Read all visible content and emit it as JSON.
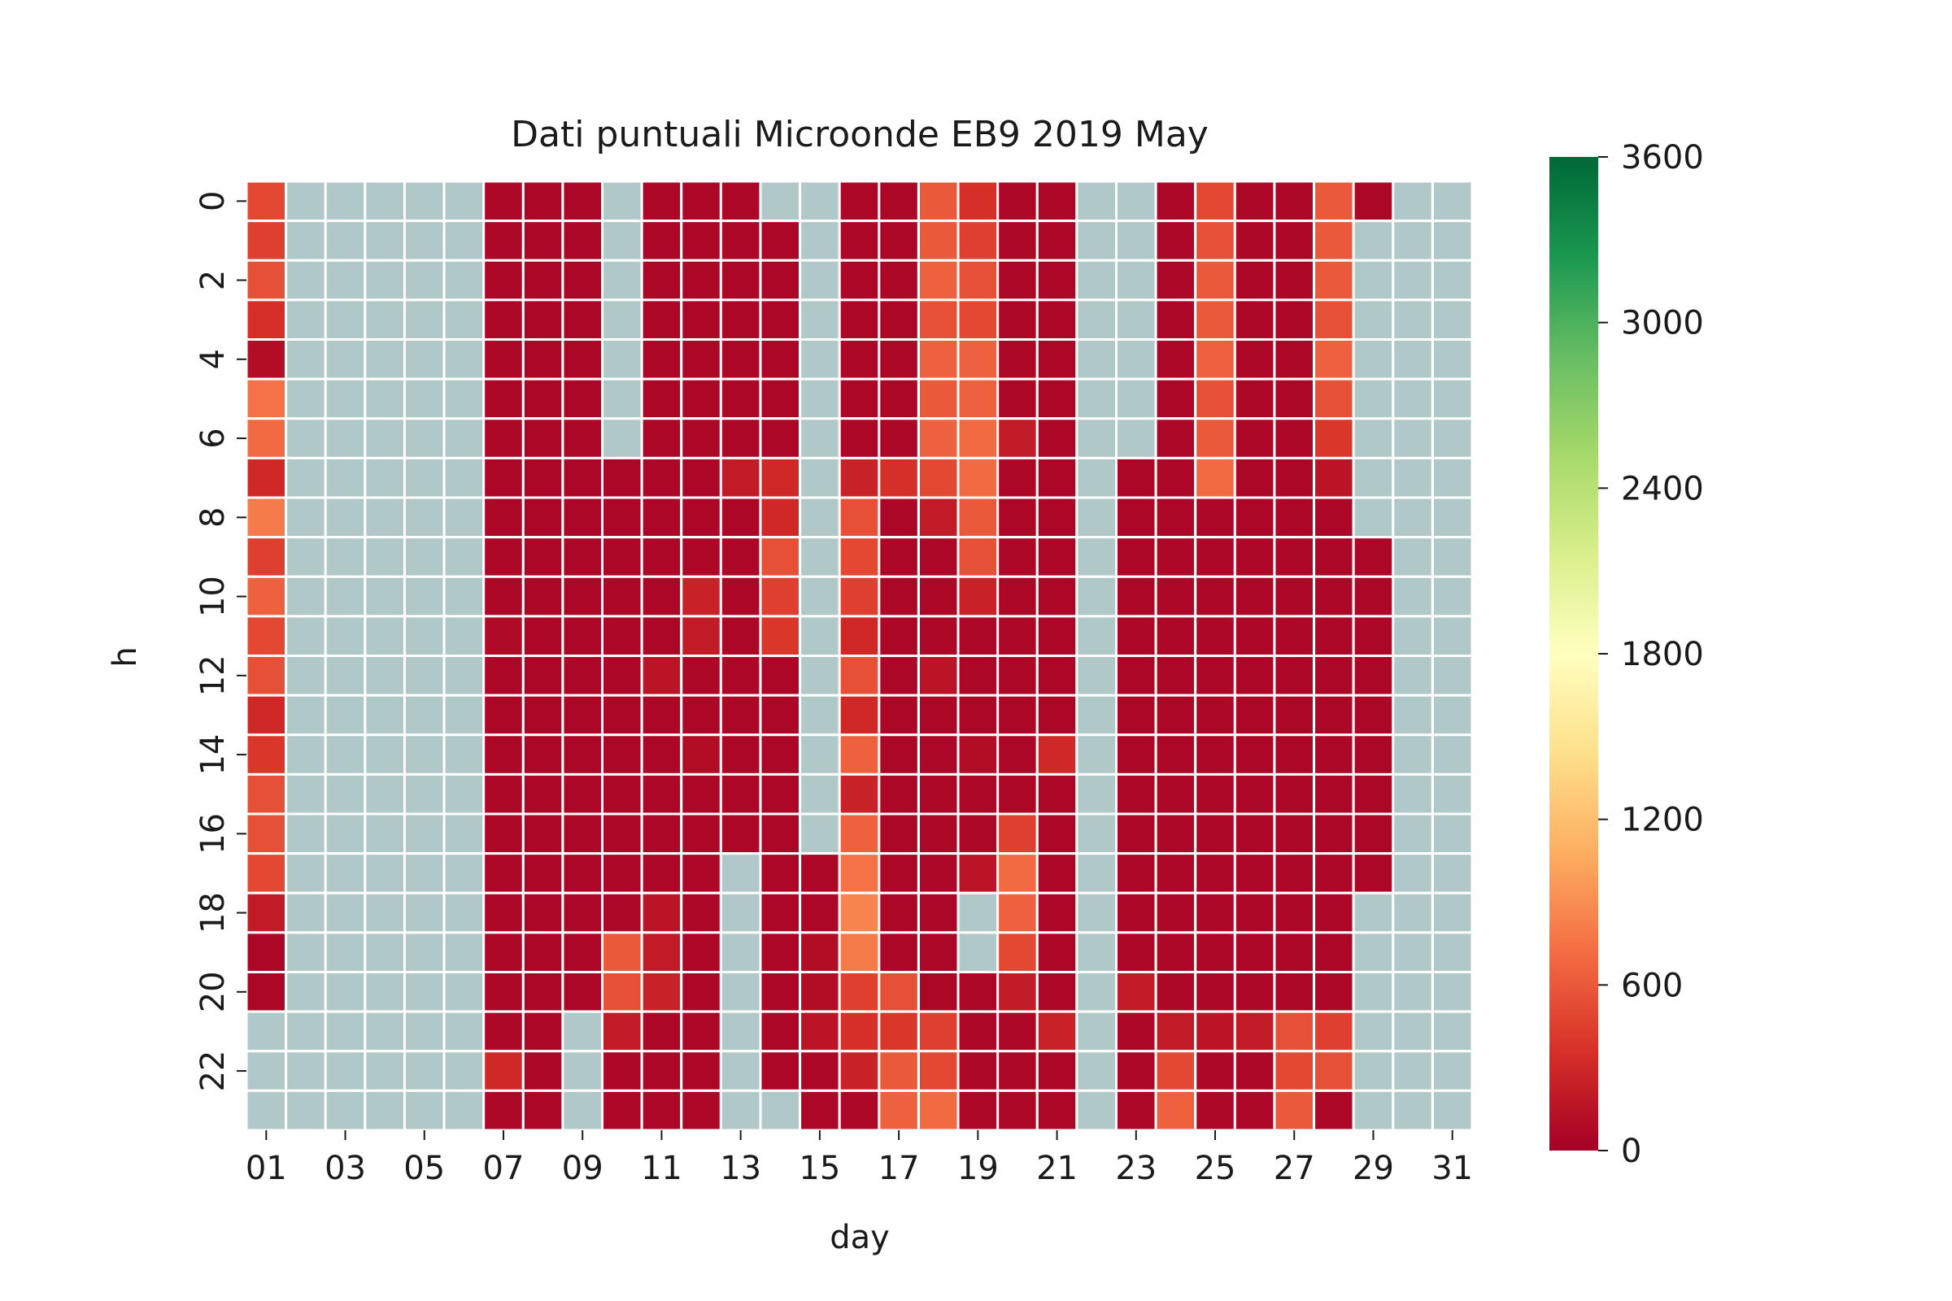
{
  "chart_data": {
    "type": "heatmap",
    "title": "Dati puntuali Microonde EB9 2019 May",
    "xlabel": "day",
    "ylabel": "h",
    "x_categories": [
      "01",
      "02",
      "03",
      "04",
      "05",
      "06",
      "07",
      "08",
      "09",
      "10",
      "11",
      "12",
      "13",
      "14",
      "15",
      "16",
      "17",
      "18",
      "19",
      "20",
      "21",
      "22",
      "23",
      "24",
      "25",
      "26",
      "27",
      "28",
      "29",
      "30",
      "31"
    ],
    "x_tick_labels": [
      "01",
      "03",
      "05",
      "07",
      "09",
      "11",
      "13",
      "15",
      "17",
      "19",
      "21",
      "23",
      "25",
      "27",
      "29",
      "31"
    ],
    "y_categories": [
      "0",
      "1",
      "2",
      "3",
      "4",
      "5",
      "6",
      "7",
      "8",
      "9",
      "10",
      "11",
      "12",
      "13",
      "14",
      "15",
      "16",
      "17",
      "18",
      "19",
      "20",
      "21",
      "22",
      "23"
    ],
    "y_tick_labels": [
      "0",
      "2",
      "4",
      "6",
      "8",
      "10",
      "12",
      "14",
      "16",
      "18",
      "20",
      "22"
    ],
    "colorbar": {
      "min": 0,
      "max": 3600,
      "ticks": [
        "0",
        "600",
        "1200",
        "1800",
        "2400",
        "3000",
        "3600"
      ],
      "colormap": "RdYlGn",
      "missing_color": "#b1c8c8"
    },
    "values": [
      [
        500,
        null,
        null,
        null,
        null,
        null,
        50,
        50,
        50,
        null,
        50,
        50,
        50,
        null,
        null,
        50,
        50,
        600,
        350,
        50,
        50,
        null,
        null,
        50,
        500,
        50,
        50,
        600,
        50,
        null,
        null
      ],
      [
        450,
        null,
        null,
        null,
        null,
        null,
        50,
        50,
        50,
        null,
        50,
        50,
        50,
        50,
        null,
        50,
        50,
        600,
        450,
        50,
        50,
        null,
        null,
        50,
        550,
        50,
        50,
        600,
        null,
        null,
        null
      ],
      [
        550,
        null,
        null,
        null,
        null,
        null,
        50,
        50,
        50,
        null,
        50,
        50,
        50,
        50,
        null,
        50,
        50,
        650,
        550,
        50,
        50,
        null,
        null,
        50,
        600,
        50,
        50,
        600,
        null,
        null,
        null
      ],
      [
        350,
        null,
        null,
        null,
        null,
        null,
        50,
        50,
        50,
        null,
        50,
        50,
        50,
        50,
        null,
        50,
        50,
        550,
        500,
        50,
        50,
        null,
        null,
        50,
        600,
        50,
        50,
        550,
        null,
        null,
        null
      ],
      [
        100,
        null,
        null,
        null,
        null,
        null,
        50,
        50,
        50,
        null,
        50,
        50,
        50,
        50,
        null,
        50,
        50,
        650,
        650,
        50,
        50,
        null,
        null,
        50,
        650,
        50,
        50,
        650,
        null,
        null,
        null
      ],
      [
        750,
        null,
        null,
        null,
        null,
        null,
        50,
        50,
        50,
        null,
        50,
        50,
        50,
        50,
        null,
        50,
        50,
        600,
        650,
        50,
        50,
        null,
        null,
        50,
        550,
        50,
        50,
        550,
        null,
        null,
        null
      ],
      [
        700,
        null,
        null,
        null,
        null,
        null,
        50,
        50,
        50,
        null,
        50,
        50,
        50,
        50,
        null,
        50,
        50,
        650,
        700,
        200,
        50,
        null,
        null,
        50,
        600,
        50,
        50,
        400,
        null,
        null,
        null
      ],
      [
        300,
        null,
        null,
        null,
        null,
        null,
        50,
        50,
        50,
        50,
        50,
        50,
        200,
        300,
        null,
        250,
        350,
        500,
        700,
        50,
        50,
        null,
        50,
        50,
        700,
        50,
        50,
        150,
        null,
        null,
        null
      ],
      [
        800,
        null,
        null,
        null,
        null,
        null,
        50,
        50,
        50,
        50,
        50,
        50,
        50,
        300,
        null,
        550,
        50,
        200,
        600,
        50,
        50,
        null,
        50,
        50,
        50,
        50,
        50,
        50,
        null,
        null,
        null
      ],
      [
        450,
        null,
        null,
        null,
        null,
        null,
        50,
        50,
        50,
        50,
        50,
        50,
        50,
        550,
        null,
        500,
        50,
        50,
        550,
        50,
        50,
        null,
        50,
        50,
        50,
        50,
        50,
        50,
        50,
        null,
        null
      ],
      [
        650,
        null,
        null,
        null,
        null,
        null,
        50,
        50,
        50,
        50,
        50,
        250,
        50,
        450,
        null,
        450,
        50,
        50,
        250,
        50,
        50,
        null,
        50,
        50,
        50,
        50,
        50,
        50,
        50,
        null,
        null
      ],
      [
        500,
        null,
        null,
        null,
        null,
        null,
        80,
        50,
        50,
        50,
        50,
        200,
        50,
        400,
        null,
        300,
        50,
        50,
        50,
        50,
        50,
        null,
        50,
        50,
        50,
        50,
        50,
        50,
        50,
        null,
        null
      ],
      [
        550,
        null,
        null,
        null,
        null,
        null,
        50,
        50,
        50,
        50,
        150,
        50,
        50,
        50,
        null,
        550,
        50,
        150,
        50,
        50,
        50,
        null,
        50,
        50,
        50,
        50,
        50,
        50,
        50,
        null,
        null
      ],
      [
        300,
        null,
        null,
        null,
        null,
        null,
        50,
        50,
        50,
        50,
        50,
        50,
        50,
        50,
        null,
        300,
        50,
        50,
        50,
        50,
        50,
        null,
        50,
        50,
        50,
        50,
        50,
        50,
        50,
        null,
        null
      ],
      [
        400,
        null,
        null,
        null,
        null,
        null,
        50,
        50,
        50,
        50,
        50,
        100,
        50,
        50,
        null,
        650,
        50,
        50,
        100,
        50,
        300,
        null,
        50,
        50,
        50,
        50,
        50,
        50,
        50,
        null,
        null
      ],
      [
        550,
        null,
        null,
        null,
        null,
        null,
        50,
        50,
        50,
        50,
        50,
        50,
        50,
        50,
        null,
        250,
        50,
        50,
        50,
        50,
        50,
        null,
        50,
        50,
        50,
        50,
        50,
        50,
        50,
        null,
        null
      ],
      [
        550,
        null,
        null,
        null,
        null,
        null,
        50,
        50,
        50,
        50,
        50,
        50,
        50,
        50,
        null,
        650,
        50,
        50,
        50,
        450,
        50,
        null,
        50,
        50,
        50,
        50,
        50,
        50,
        50,
        null,
        null
      ],
      [
        500,
        null,
        null,
        null,
        null,
        null,
        50,
        50,
        50,
        50,
        50,
        50,
        null,
        50,
        50,
        750,
        50,
        50,
        150,
        700,
        50,
        null,
        50,
        50,
        50,
        50,
        50,
        50,
        50,
        null,
        null
      ],
      [
        200,
        null,
        null,
        null,
        null,
        null,
        50,
        50,
        50,
        50,
        150,
        50,
        null,
        50,
        50,
        850,
        50,
        50,
        null,
        650,
        50,
        null,
        50,
        50,
        50,
        50,
        50,
        50,
        null,
        null,
        null
      ],
      [
        50,
        null,
        null,
        null,
        null,
        null,
        50,
        50,
        50,
        600,
        200,
        50,
        null,
        50,
        100,
        800,
        50,
        50,
        null,
        500,
        50,
        null,
        50,
        50,
        50,
        50,
        50,
        50,
        null,
        null,
        null
      ],
      [
        50,
        null,
        null,
        null,
        null,
        null,
        50,
        50,
        50,
        550,
        250,
        50,
        null,
        50,
        100,
        450,
        550,
        50,
        50,
        200,
        50,
        null,
        200,
        50,
        50,
        50,
        50,
        50,
        null,
        null,
        null
      ],
      [
        null,
        null,
        null,
        null,
        null,
        null,
        50,
        50,
        null,
        200,
        50,
        50,
        null,
        50,
        150,
        350,
        400,
        450,
        50,
        50,
        250,
        null,
        50,
        200,
        150,
        200,
        550,
        450,
        null,
        null,
        null
      ],
      [
        null,
        null,
        null,
        null,
        null,
        null,
        300,
        50,
        null,
        50,
        50,
        50,
        null,
        50,
        50,
        250,
        600,
        500,
        50,
        50,
        50,
        null,
        50,
        500,
        50,
        50,
        500,
        550,
        null,
        null,
        null
      ],
      [
        null,
        null,
        null,
        null,
        null,
        null,
        50,
        50,
        null,
        50,
        50,
        50,
        null,
        null,
        50,
        50,
        650,
        700,
        50,
        50,
        50,
        null,
        50,
        650,
        50,
        50,
        600,
        50,
        null,
        null,
        null
      ]
    ]
  }
}
